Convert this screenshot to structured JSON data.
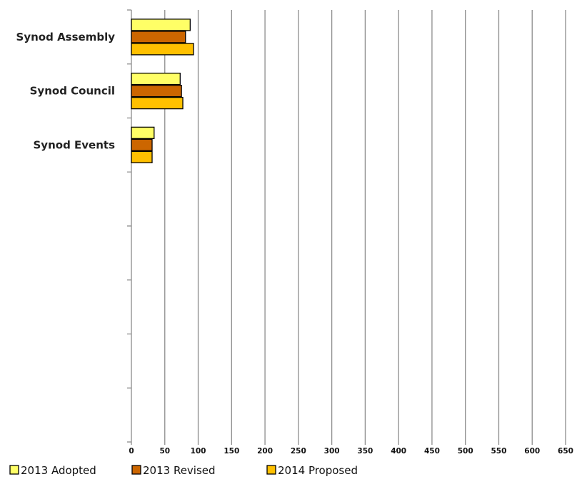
{
  "chart_data": {
    "type": "bar",
    "orientation": "horizontal",
    "categories": [
      "Synod Assembly",
      "Synod Council",
      "Synod Events"
    ],
    "series": [
      {
        "name": "2013 Adopted",
        "color": "#ffff66",
        "values": [
          88,
          73,
          34
        ]
      },
      {
        "name": "2013 Revised",
        "color": "#cc6600",
        "values": [
          81,
          75,
          31
        ]
      },
      {
        "name": "2014 Proposed",
        "color": "#ffc000",
        "values": [
          93,
          77,
          31
        ]
      }
    ],
    "xlim": [
      0,
      650
    ],
    "xticks": [
      0,
      50,
      100,
      150,
      200,
      250,
      300,
      350,
      400,
      450,
      500,
      550,
      600,
      650
    ],
    "category_slots": 8,
    "grid": "vertical",
    "legend": "bottom-left",
    "title": "",
    "xlabel": "",
    "ylabel": ""
  }
}
